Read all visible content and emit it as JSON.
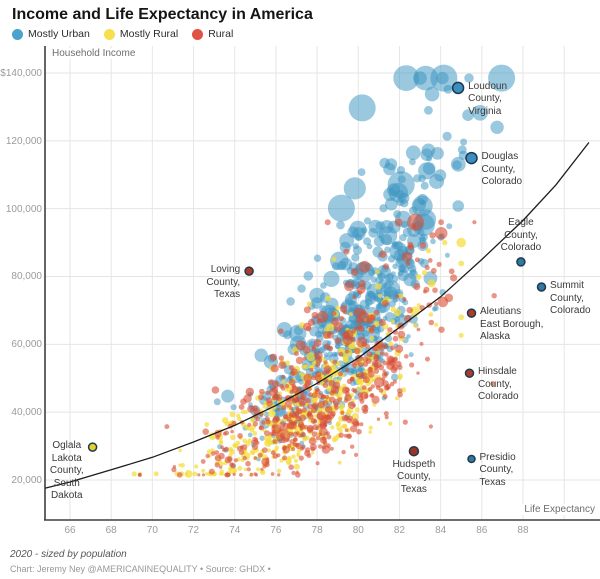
{
  "title": "Income and Life Expectancy in America",
  "legend": [
    {
      "key": "mostly-urban",
      "label": "Mostly Urban",
      "color": "#4aa3cc"
    },
    {
      "key": "mostly-rural",
      "label": "Mostly Rural",
      "color": "#f6e04e"
    },
    {
      "key": "rural",
      "label": "Rural",
      "color": "#e05243"
    }
  ],
  "footer": {
    "note": "2020 - sized by population",
    "credit": "Chart: Jeremy Ney @AMERICANINEQUALITY • Source: GHDX •"
  },
  "chart_data": {
    "type": "scatter",
    "title": "Income and Life Expectancy in America",
    "xlabel": "Life Expectancy",
    "ylabel": "Household Income",
    "legend_position": "top-left",
    "grid": true,
    "sized_by": "population",
    "xlim": [
      64.8,
      91.7
    ],
    "ylim": [
      8200,
      144400
    ],
    "x_ticks": [
      66,
      68,
      70,
      72,
      74,
      76,
      78,
      80,
      82,
      84,
      86,
      88
    ],
    "x_tick_labels": [
      "66",
      "68",
      "70",
      "72",
      "74",
      "76",
      "78",
      "80",
      "82",
      "84",
      "86",
      "88"
    ],
    "x_grid": [
      66,
      68,
      70,
      72,
      74,
      76,
      78,
      80,
      82,
      84,
      86,
      88,
      90
    ],
    "y_ticks": [
      20000,
      40000,
      60000,
      80000,
      100000,
      120000,
      140000
    ],
    "y_tick_labels": [
      "20,000",
      "40,000",
      "60,000",
      "80,000",
      "100,000",
      "120,000",
      "$140,000"
    ],
    "trend": [
      [
        64.8,
        17600
      ],
      [
        66,
        19400
      ],
      [
        68,
        23000
      ],
      [
        70,
        26700
      ],
      [
        72,
        31200
      ],
      [
        74,
        36100
      ],
      [
        76,
        42000
      ],
      [
        78,
        48500
      ],
      [
        80,
        56000
      ],
      [
        82,
        65000
      ],
      [
        84,
        74000
      ],
      [
        86,
        85000
      ],
      [
        88,
        96500
      ],
      [
        89.6,
        107000
      ],
      [
        91.2,
        119500
      ]
    ],
    "annotations": [
      {
        "id": "loudoun",
        "label": "Loudoun\nCounty,\nVirginia",
        "x": 84.85,
        "y": 135600,
        "category": "Mostly Urban",
        "dot_color": "#3c8ec0",
        "r": 5.5,
        "side": "right"
      },
      {
        "id": "douglas",
        "label": "Douglas\nCounty,\nColorado",
        "x": 85.5,
        "y": 114900,
        "category": "Mostly Urban",
        "dot_color": "#3c8ec0",
        "r": 5.5,
        "side": "right"
      },
      {
        "id": "eagle",
        "label": "Eagle\nCounty,\nColorado",
        "x": 87.9,
        "y": 84300,
        "category": "Mostly Urban",
        "dot_color": "#35789f",
        "r": 4,
        "side": "above"
      },
      {
        "id": "summit",
        "label": "Summit\nCounty,\nColorado",
        "x": 88.9,
        "y": 76900,
        "category": "Mostly Urban",
        "dot_color": "#35789f",
        "r": 4,
        "side": "right"
      },
      {
        "id": "aleutians",
        "label": "Aleutians\nEast Borough,\nAlaska",
        "x": 85.5,
        "y": 69200,
        "category": "Rural",
        "dot_color": "#b13a27",
        "r": 4,
        "side": "right"
      },
      {
        "id": "hinsdale",
        "label": "Hinsdale\nCounty,\nColorado",
        "x": 85.4,
        "y": 51500,
        "category": "Rural",
        "dot_color": "#b13a27",
        "r": 4,
        "side": "right"
      },
      {
        "id": "presidio",
        "label": "Presidio\nCounty,\nTexas",
        "x": 85.5,
        "y": 26200,
        "category": "Mostly Urban",
        "dot_color": "#35789f",
        "r": 3.5,
        "side": "right"
      },
      {
        "id": "hudspeth",
        "label": "Hudspeth\nCounty,\nTexas",
        "x": 82.7,
        "y": 28500,
        "category": "Rural",
        "dot_color": "#9c3424",
        "r": 4.5,
        "side": "below"
      },
      {
        "id": "loving",
        "label": "Loving\nCounty,\nTexas",
        "x": 74.7,
        "y": 81600,
        "category": "Rural",
        "dot_color": "#b13a27",
        "r": 4,
        "side": "left"
      },
      {
        "id": "oglala",
        "label": "Oglala\nLakota\nCounty,\nSouth\nDakota",
        "x": 67.1,
        "y": 29700,
        "category": "Mostly Rural",
        "dot_color": "#e5cf33",
        "r": 4,
        "side": "left-center"
      }
    ],
    "scatter_spec": {
      "comment": "Approximately 1500 U.S. counties; cloud reproduced procedurally from these distribution parameters (x=life expectancy yrs, y=household income $, bubble size=population).",
      "seed": 20,
      "series": [
        {
          "key": "mostly-urban",
          "name": "Mostly Urban",
          "color": "#3d95c2",
          "opacity": 0.52,
          "count": 560,
          "le_mean": 79.8,
          "le_sd": 2.45,
          "z_le": 0.5,
          "le_min": 70.5,
          "le_max": 87.0,
          "inc_offset": 0.13,
          "inc_sd": 0.22,
          "inc_min": 24000,
          "inc_max": 138500,
          "r_base": 1.8,
          "r_mu": 0.5,
          "r_z": 0.5,
          "r_sd": 0.62,
          "r_max": 13.5
        },
        {
          "key": "mostly-rural",
          "name": "Mostly Rural",
          "color": "#f4dd3c",
          "opacity": 0.72,
          "count": 430,
          "le_mean": 77.4,
          "le_sd": 2.75,
          "z_le": 0.35,
          "le_min": 66.3,
          "le_max": 85.0,
          "inc_offset": -0.16,
          "inc_sd": 0.23,
          "inc_min": 21800,
          "inc_max": 90000,
          "r_base": 1.3,
          "r_mu": 0.1,
          "r_z": 0.15,
          "r_sd": 0.45,
          "r_max": 5
        },
        {
          "key": "rural",
          "name": "Rural",
          "color": "#d94e35",
          "opacity": 0.6,
          "count": 520,
          "le_mean": 78.3,
          "le_sd": 2.9,
          "z_le": 0.3,
          "le_min": 66.5,
          "le_max": 86.6,
          "inc_offset": -0.13,
          "inc_sd": 0.25,
          "inc_min": 21500,
          "inc_max": 96000,
          "r_base": 1.3,
          "r_mu": 0.28,
          "r_z": 0.2,
          "r_sd": 0.5,
          "r_max": 8.5
        }
      ]
    }
  }
}
